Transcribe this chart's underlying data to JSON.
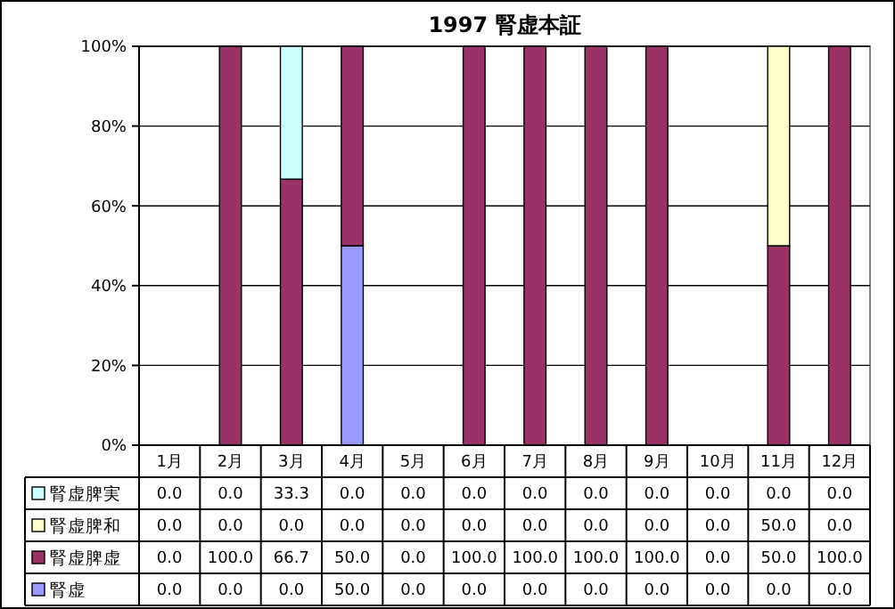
{
  "chart_data": {
    "type": "bar",
    "title": "1997 腎虚本証",
    "stacked": true,
    "legend": "bottom left",
    "grid": "y",
    "ylim": [
      0,
      100
    ],
    "yticks": [
      {
        "value": 0,
        "label": "0%"
      },
      {
        "value": 20,
        "label": "20%"
      },
      {
        "value": 40,
        "label": "40%"
      },
      {
        "value": 60,
        "label": "60%"
      },
      {
        "value": 80,
        "label": "80%"
      },
      {
        "value": 100,
        "label": "100%"
      }
    ],
    "categories": [
      "1月",
      "2月",
      "3月",
      "4月",
      "5月",
      "6月",
      "7月",
      "8月",
      "9月",
      "10月",
      "11月",
      "12月"
    ],
    "series": [
      {
        "name": "腎虚",
        "color": "#9999ff",
        "values": [
          0,
          0,
          0,
          50,
          0,
          0,
          0,
          0,
          0,
          0,
          0,
          0
        ],
        "value_labels": [
          "0.0",
          "0.0",
          "0.0",
          "50.0",
          "0.0",
          "0.0",
          "0.0",
          "0.0",
          "0.0",
          "0.0",
          "0.0",
          "0.0"
        ]
      },
      {
        "name": "腎虚脾虚",
        "color": "#993366",
        "values": [
          0,
          100,
          66.7,
          50,
          0,
          100,
          100,
          100,
          100,
          0,
          50,
          100
        ],
        "value_labels": [
          "0.0",
          "100.0",
          "66.7",
          "50.0",
          "0.0",
          "100.0",
          "100.0",
          "100.0",
          "100.0",
          "0.0",
          "50.0",
          "100.0"
        ]
      },
      {
        "name": "腎虚脾和",
        "color": "#ffffcc",
        "values": [
          0,
          0,
          0,
          0,
          0,
          0,
          0,
          0,
          0,
          0,
          50,
          0
        ],
        "value_labels": [
          "0.0",
          "0.0",
          "0.0",
          "0.0",
          "0.0",
          "0.0",
          "0.0",
          "0.0",
          "0.0",
          "0.0",
          "50.0",
          "0.0"
        ]
      },
      {
        "name": "腎虚脾実",
        "color": "#ccffff",
        "values": [
          0,
          0,
          33.3,
          0,
          0,
          0,
          0,
          0,
          0,
          0,
          0,
          0
        ],
        "value_labels": [
          "0.0",
          "0.0",
          "33.3",
          "0.0",
          "0.0",
          "0.0",
          "0.0",
          "0.0",
          "0.0",
          "0.0",
          "0.0",
          "0.0"
        ]
      }
    ]
  }
}
